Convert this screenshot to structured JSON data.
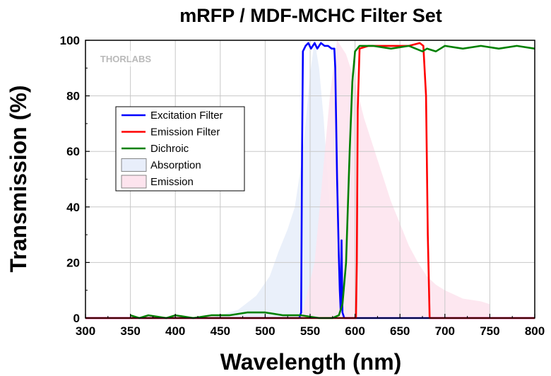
{
  "chart_data": {
    "type": "line",
    "title": "mRFP / MDF-MCHC Filter Set",
    "xlabel": "Wavelength (nm)",
    "ylabel": "Transmission (%)",
    "xlim": [
      300,
      800
    ],
    "ylim": [
      0,
      100
    ],
    "xticks": [
      300,
      350,
      400,
      450,
      500,
      550,
      600,
      650,
      700,
      750,
      800
    ],
    "yticks": [
      0,
      20,
      40,
      60,
      80,
      100
    ],
    "grid": true,
    "legend_position": "upper-left",
    "watermark": "THORLABS",
    "series": [
      {
        "name": "Excitation Filter",
        "kind": "line",
        "color": "#0000ff",
        "points": [
          [
            300,
            0
          ],
          [
            538,
            0
          ],
          [
            540,
            2
          ],
          [
            541,
            60
          ],
          [
            542,
            96
          ],
          [
            545,
            98
          ],
          [
            548,
            99
          ],
          [
            551,
            97
          ],
          [
            555,
            99
          ],
          [
            558,
            97
          ],
          [
            562,
            99
          ],
          [
            566,
            98
          ],
          [
            570,
            98
          ],
          [
            574,
            97
          ],
          [
            577,
            97
          ],
          [
            578,
            90
          ],
          [
            580,
            50
          ],
          [
            582,
            22
          ],
          [
            583,
            10
          ],
          [
            584,
            3
          ],
          [
            585,
            28
          ],
          [
            586,
            2
          ],
          [
            588,
            0
          ],
          [
            800,
            0
          ]
        ]
      },
      {
        "name": "Emission Filter",
        "kind": "line",
        "color": "#ff0000",
        "points": [
          [
            300,
            0
          ],
          [
            601,
            0
          ],
          [
            602,
            20
          ],
          [
            603,
            75
          ],
          [
            605,
            97
          ],
          [
            615,
            98
          ],
          [
            630,
            98
          ],
          [
            645,
            98
          ],
          [
            660,
            98
          ],
          [
            672,
            99
          ],
          [
            676,
            98
          ],
          [
            679,
            80
          ],
          [
            681,
            30
          ],
          [
            683,
            0
          ],
          [
            800,
            0
          ]
        ]
      },
      {
        "name": "Dichroic",
        "kind": "line",
        "color": "#008000",
        "points": [
          [
            350,
            1
          ],
          [
            360,
            0
          ],
          [
            370,
            1
          ],
          [
            390,
            0
          ],
          [
            400,
            1
          ],
          [
            420,
            0
          ],
          [
            440,
            1
          ],
          [
            460,
            1
          ],
          [
            480,
            2
          ],
          [
            500,
            2
          ],
          [
            520,
            1
          ],
          [
            540,
            1
          ],
          [
            560,
            0
          ],
          [
            575,
            0
          ],
          [
            582,
            1
          ],
          [
            586,
            5
          ],
          [
            590,
            20
          ],
          [
            594,
            60
          ],
          [
            597,
            85
          ],
          [
            600,
            96
          ],
          [
            605,
            98
          ],
          [
            620,
            98
          ],
          [
            640,
            97
          ],
          [
            660,
            98
          ],
          [
            675,
            96
          ],
          [
            680,
            97
          ],
          [
            690,
            96
          ],
          [
            695,
            97
          ],
          [
            700,
            98
          ],
          [
            720,
            97
          ],
          [
            740,
            98
          ],
          [
            760,
            97
          ],
          [
            780,
            98
          ],
          [
            800,
            97
          ]
        ]
      },
      {
        "name": "Absorption",
        "kind": "area",
        "color": "#e8eefa",
        "points": [
          [
            440,
            0
          ],
          [
            470,
            3
          ],
          [
            490,
            8
          ],
          [
            505,
            15
          ],
          [
            515,
            24
          ],
          [
            525,
            32
          ],
          [
            533,
            40
          ],
          [
            540,
            55
          ],
          [
            545,
            70
          ],
          [
            550,
            88
          ],
          [
            555,
            100
          ],
          [
            560,
            90
          ],
          [
            565,
            72
          ],
          [
            570,
            48
          ],
          [
            575,
            25
          ],
          [
            580,
            10
          ],
          [
            585,
            3
          ],
          [
            590,
            0
          ]
        ]
      },
      {
        "name": "Emission",
        "kind": "area",
        "color": "#fde4ee",
        "points": [
          [
            540,
            0
          ],
          [
            555,
            20
          ],
          [
            565,
            55
          ],
          [
            572,
            80
          ],
          [
            580,
            100
          ],
          [
            590,
            95
          ],
          [
            600,
            85
          ],
          [
            610,
            72
          ],
          [
            620,
            62
          ],
          [
            630,
            52
          ],
          [
            640,
            42
          ],
          [
            650,
            34
          ],
          [
            660,
            26
          ],
          [
            670,
            20
          ],
          [
            680,
            15
          ],
          [
            690,
            12
          ],
          [
            700,
            10
          ],
          [
            720,
            7
          ],
          [
            740,
            6
          ],
          [
            750,
            5
          ],
          [
            750,
            0
          ]
        ]
      }
    ]
  }
}
